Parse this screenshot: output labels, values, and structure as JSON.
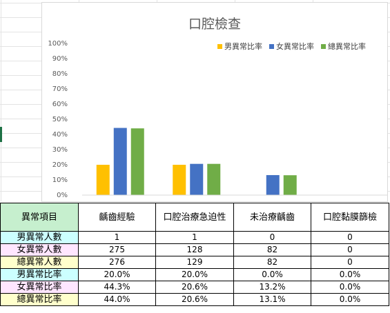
{
  "chart_data": {
    "type": "bar",
    "title": "口腔檢查",
    "categories": [
      "齲齒經驗",
      "口腔治療急迫性",
      "未治療齲齒",
      "口腔黏膜篩檢"
    ],
    "series": [
      {
        "name": "男異常比率",
        "color": "#ffc000",
        "values": [
          20.0,
          20.0,
          0.0,
          0.0
        ]
      },
      {
        "name": "女異常比率",
        "color": "#4472c4",
        "values": [
          44.3,
          20.6,
          13.2,
          0.0
        ]
      },
      {
        "name": "總異常比率",
        "color": "#70ad47",
        "values": [
          44.0,
          20.6,
          13.1,
          0.0
        ]
      }
    ],
    "y_ticks": [
      "0%",
      "10%",
      "20%",
      "30%",
      "40%",
      "50%",
      "60%",
      "70%",
      "80%",
      "90%",
      "100%"
    ],
    "ylim": [
      0,
      100
    ],
    "legend_position": "top-right",
    "grid": false
  },
  "table": {
    "header": [
      "異常項目",
      "齲齒經驗",
      "口腔治療急迫性",
      "未治療齲齒",
      "口腔黏膜篩檢"
    ],
    "rows": [
      {
        "label": "男異常人數",
        "color": "#ccffff",
        "cells": [
          "1",
          "1",
          "0",
          "0"
        ]
      },
      {
        "label": "女異常人數",
        "color": "#ffe6ff",
        "cells": [
          "275",
          "128",
          "82",
          "0"
        ]
      },
      {
        "label": "總異常人數",
        "color": "#ffffcc",
        "cells": [
          "276",
          "129",
          "82",
          "0"
        ]
      },
      {
        "label": "男異常比率",
        "color": "#ccffff",
        "cells": [
          "20.0%",
          "20.0%",
          "0.0%",
          "0.0%"
        ]
      },
      {
        "label": "女異常比率",
        "color": "#ffe6ff",
        "cells": [
          "44.3%",
          "20.6%",
          "13.2%",
          "0.0%"
        ]
      },
      {
        "label": "總異常比率",
        "color": "#ffffcc",
        "cells": [
          "44.0%",
          "20.6%",
          "13.1%",
          "0.0%"
        ]
      }
    ],
    "header_color": "#c6efce"
  }
}
